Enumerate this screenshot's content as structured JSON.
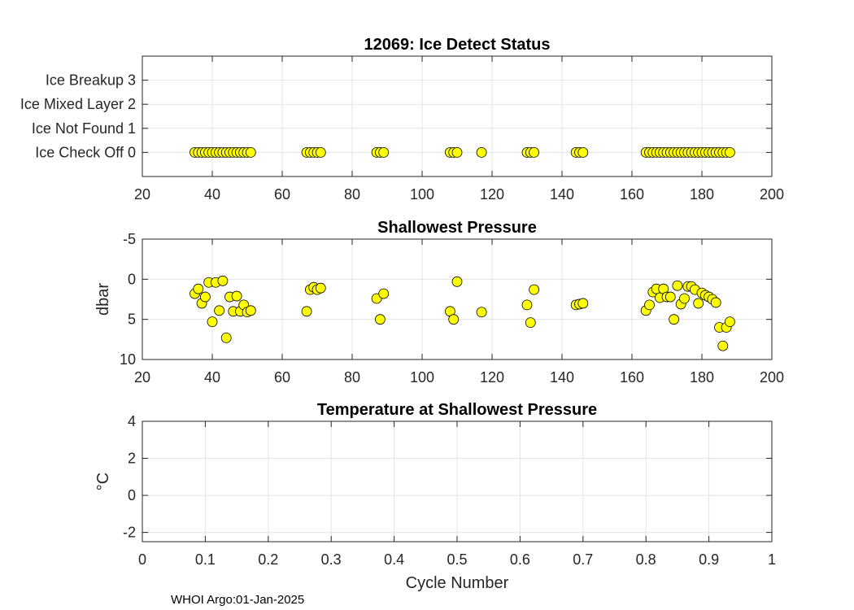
{
  "chart_data": [
    {
      "type": "scatter",
      "title": "12069: Ice Detect Status",
      "xlabel": "",
      "ylabel": "",
      "xlim": [
        20,
        200
      ],
      "ylim": [
        -1,
        4
      ],
      "y_reversed": false,
      "grid": true,
      "xticks": [
        20,
        40,
        60,
        80,
        100,
        120,
        140,
        160,
        180,
        200
      ],
      "xtick_labels": [
        "20",
        "40",
        "60",
        "80",
        "100",
        "120",
        "140",
        "160",
        "180",
        "200"
      ],
      "yticks": [
        0,
        1,
        2,
        3
      ],
      "ytick_labels": [
        "Ice Check Off 0",
        "Ice Not Found 1",
        "Ice Mixed Layer 2",
        "Ice Breakup 3"
      ],
      "marker_color": "#ffff00",
      "series": [
        {
          "name": "Ice Detect",
          "x": [
            35,
            36,
            37,
            38,
            39,
            40,
            41,
            42,
            43,
            44,
            45,
            46,
            47,
            48,
            49,
            50,
            51,
            67,
            68,
            69,
            70,
            71,
            87,
            88,
            89,
            108,
            109,
            110,
            117,
            130,
            131,
            132,
            144,
            145,
            146,
            164,
            165,
            166,
            167,
            168,
            169,
            170,
            171,
            172,
            173,
            174,
            175,
            176,
            177,
            178,
            179,
            180,
            181,
            182,
            183,
            184,
            185,
            186,
            187,
            188
          ],
          "y": [
            0,
            0,
            0,
            0,
            0,
            0,
            0,
            0,
            0,
            0,
            0,
            0,
            0,
            0,
            0,
            0,
            0,
            0,
            0,
            0,
            0,
            0,
            0,
            0,
            0,
            0,
            0,
            0,
            0,
            0,
            0,
            0,
            0,
            0,
            0,
            0,
            0,
            0,
            0,
            0,
            0,
            0,
            0,
            0,
            0,
            0,
            0,
            0,
            0,
            0,
            0,
            0,
            0,
            0,
            0,
            0,
            0,
            0,
            0,
            0
          ]
        }
      ]
    },
    {
      "type": "scatter",
      "title": "Shallowest Pressure",
      "xlabel": "",
      "ylabel": "dbar",
      "xlim": [
        20,
        200
      ],
      "ylim": [
        -5,
        10
      ],
      "y_reversed": true,
      "grid": true,
      "xticks": [
        20,
        40,
        60,
        80,
        100,
        120,
        140,
        160,
        180,
        200
      ],
      "xtick_labels": [
        "20",
        "40",
        "60",
        "80",
        "100",
        "120",
        "140",
        "160",
        "180",
        "200"
      ],
      "yticks": [
        -5,
        0,
        5,
        10
      ],
      "ytick_labels": [
        "-5",
        "0",
        "5",
        "10"
      ],
      "marker_color": "#ffff00",
      "series": [
        {
          "name": "Shallowest Pressure",
          "x": [
            35,
            36,
            37,
            38,
            39,
            40,
            41,
            42,
            43,
            44,
            45,
            46,
            47,
            48,
            49,
            50,
            51,
            67,
            68,
            69,
            70,
            71,
            87,
            88,
            89,
            108,
            109,
            110,
            117,
            130,
            131,
            132,
            144,
            145,
            146,
            164,
            165,
            166,
            167,
            168,
            169,
            170,
            171,
            172,
            173,
            174,
            175,
            176,
            177,
            178,
            179,
            180,
            181,
            182,
            183,
            184,
            185,
            186,
            187,
            188
          ],
          "y": [
            1.8,
            1.2,
            3.0,
            2.2,
            0.4,
            5.3,
            0.4,
            3.9,
            0.2,
            7.3,
            2.2,
            4.0,
            2.1,
            4.0,
            3.2,
            4.1,
            3.9,
            4.0,
            1.3,
            1.0,
            1.3,
            1.1,
            2.4,
            5.0,
            1.8,
            4.0,
            5.0,
            0.3,
            4.1,
            3.2,
            5.4,
            1.3,
            3.2,
            3.1,
            3.0,
            3.9,
            3.2,
            1.6,
            1.2,
            2.3,
            1.2,
            2.2,
            2.2,
            5.0,
            0.8,
            3.1,
            2.4,
            0.9,
            0.9,
            1.3,
            3.0,
            1.7,
            2.0,
            2.2,
            2.5,
            2.9,
            6.0,
            8.3,
            6.0,
            5.3
          ]
        }
      ]
    },
    {
      "type": "scatter",
      "title": "Temperature at Shallowest Pressure",
      "xlabel": "Cycle Number",
      "ylabel": "°C",
      "xlim": [
        0,
        1
      ],
      "ylim": [
        -2.5,
        4
      ],
      "y_reversed": false,
      "grid": true,
      "xticks": [
        0,
        0.1,
        0.2,
        0.3,
        0.4,
        0.5,
        0.6,
        0.7,
        0.8,
        0.9,
        1
      ],
      "xtick_labels": [
        "0",
        "0.1",
        "0.2",
        "0.3",
        "0.4",
        "0.5",
        "0.6",
        "0.7",
        "0.8",
        "0.9",
        "1"
      ],
      "yticks": [
        -2,
        0,
        2,
        4
      ],
      "ytick_labels": [
        "-2",
        "0",
        "2",
        "4"
      ],
      "marker_color": "#ffff00",
      "series": []
    }
  ],
  "footer": {
    "text": "WHOI Argo:01-Jan-2025"
  }
}
